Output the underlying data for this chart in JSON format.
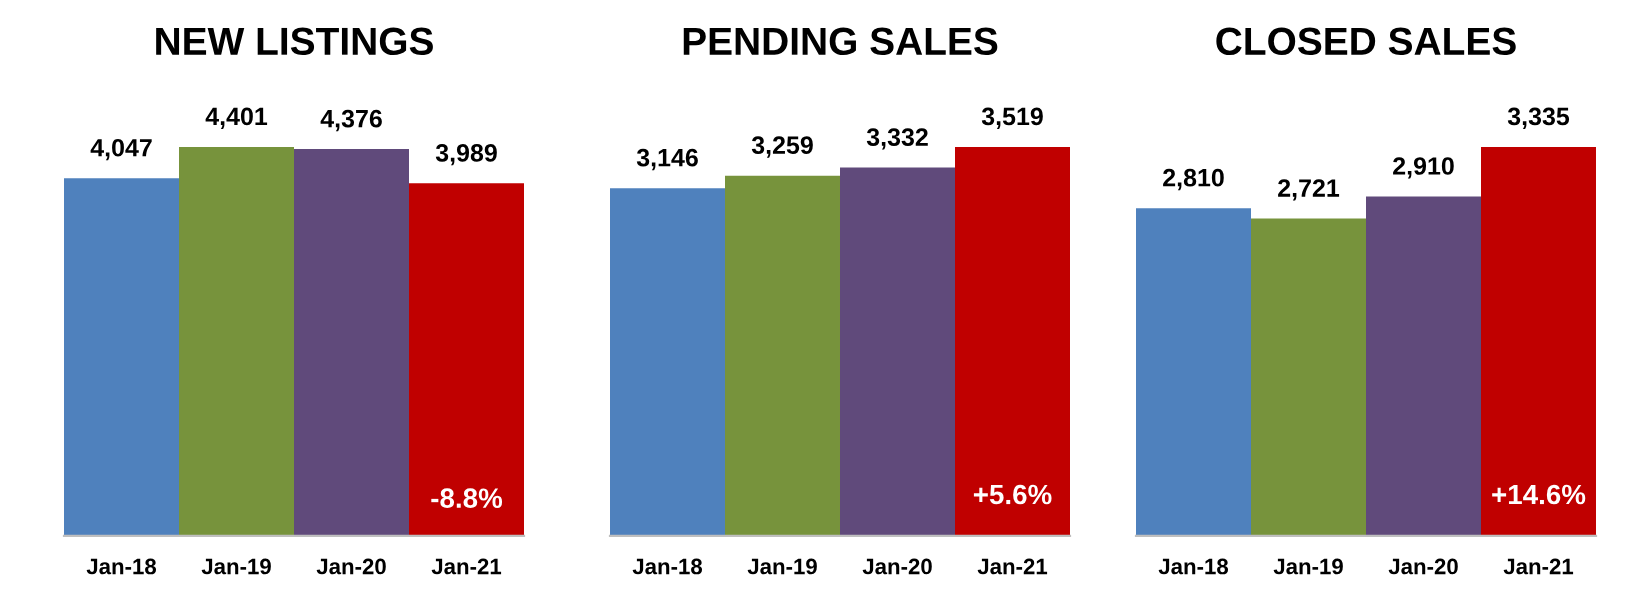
{
  "chart_data": [
    {
      "type": "bar",
      "title": "NEW LISTINGS",
      "categories": [
        "Jan-18",
        "Jan-19",
        "Jan-20",
        "Jan-21"
      ],
      "values": [
        4047,
        4401,
        4376,
        3989
      ],
      "value_labels": [
        "4,047",
        "4,401",
        "4,376",
        "3,989"
      ],
      "colors": [
        "#4f81bd",
        "#77933c",
        "#604a7b",
        "#c00000"
      ],
      "tick_labels": "x",
      "annotations": [
        "-8.8%"
      ]
    },
    {
      "type": "bar",
      "title": "PENDING SALES",
      "categories": [
        "Jan-18",
        "Jan-19",
        "Jan-20",
        "Jan-21"
      ],
      "values": [
        3146,
        3259,
        3332,
        3519
      ],
      "value_labels": [
        "3,146",
        "3,259",
        "3,332",
        "3,519"
      ],
      "colors": [
        "#4f81bd",
        "#77933c",
        "#604a7b",
        "#c00000"
      ],
      "tick_labels": "x",
      "annotations": [
        "+5.6%"
      ]
    },
    {
      "type": "bar",
      "title": "CLOSED SALES",
      "categories": [
        "Jan-18",
        "Jan-19",
        "Jan-20",
        "Jan-21"
      ],
      "values": [
        2810,
        2721,
        2910,
        3335
      ],
      "value_labels": [
        "2,810",
        "2,721",
        "2,910",
        "3,335"
      ],
      "colors": [
        "#4f81bd",
        "#77933c",
        "#604a7b",
        "#c00000"
      ],
      "tick_labels": "x",
      "annotations": [
        "+14.6%"
      ]
    }
  ]
}
